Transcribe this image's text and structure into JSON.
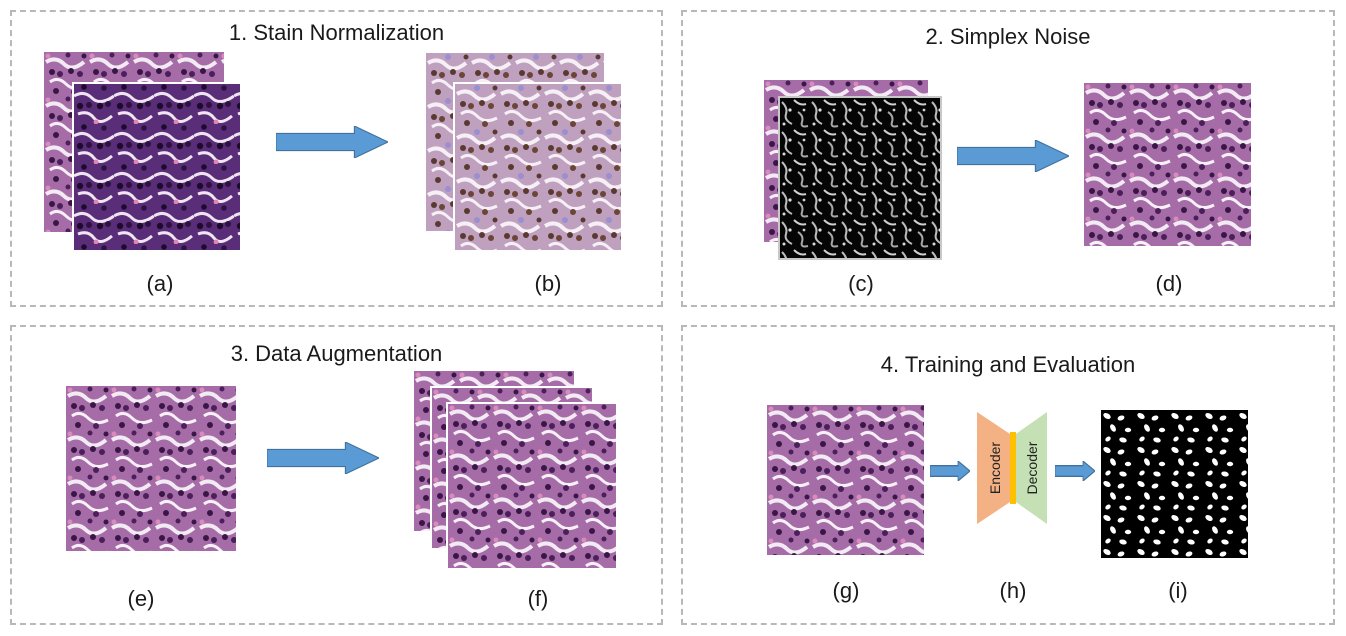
{
  "panels": [
    {
      "title": "1. Stain Normalization",
      "labels": [
        "(a)",
        "(b)"
      ]
    },
    {
      "title": "2. Simplex Noise",
      "labels": [
        "(c)",
        "(d)"
      ]
    },
    {
      "title": "3. Data Augmentation",
      "labels": [
        "(e)",
        "(f)"
      ]
    },
    {
      "title": "4. Training and Evaluation",
      "labels": [
        "(g)",
        "(h)",
        "(i)"
      ]
    }
  ],
  "model": {
    "encoder": "Encoder",
    "decoder": "Decoder"
  },
  "colors": {
    "arrow_fill": "#5b9bd5",
    "arrow_stroke": "#41719c",
    "encoder": "#f4b183",
    "decoder": "#c5e0b4",
    "bottleneck": "#ffc000",
    "panel_border": "#b8b8b8"
  }
}
